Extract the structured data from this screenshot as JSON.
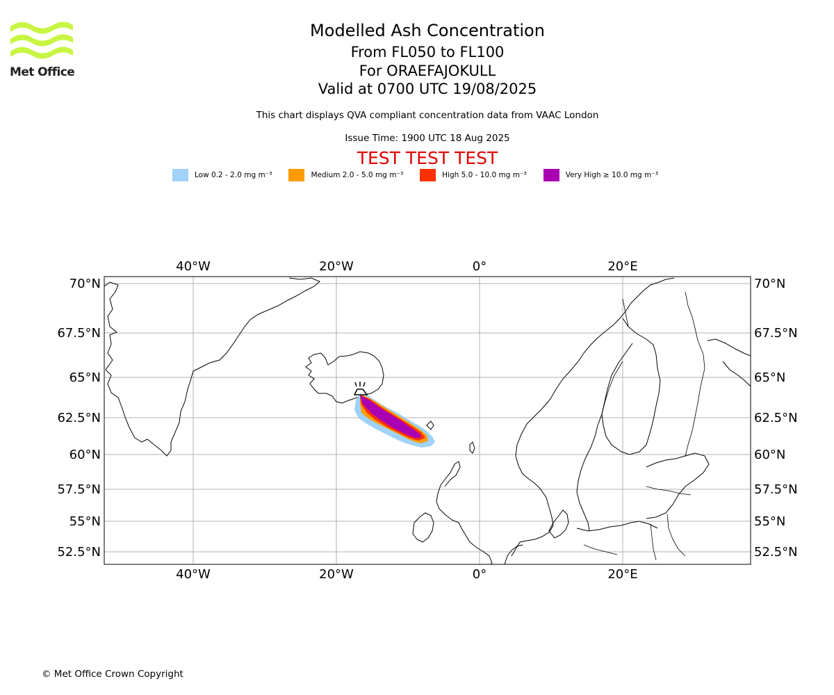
{
  "header": {
    "title": "Modelled Ash Concentration",
    "levels": "From FL050 to FL100",
    "volcano": "For ORAEFAJOKULL",
    "valid": "Valid at 0700 UTC 19/08/2025",
    "note": "This chart displays QVA compliant concentration data from VAAC London",
    "issue_time": "Issue Time: 1900 UTC 18 Aug 2025",
    "test_banner": "TEST TEST TEST"
  },
  "logo": {
    "text": "Met Office",
    "color": "#c8f542"
  },
  "legend": [
    {
      "label": "Low 0.2 - 2.0 mg m⁻³",
      "color": "#a0d2fa"
    },
    {
      "label": "Medium 2.0 - 5.0 mg m⁻³",
      "color": "#ff9a00"
    },
    {
      "label": "High 5.0 - 10.0 mg m⁻³",
      "color": "#ff3000"
    },
    {
      "label": "Very High ≥ 10.0 mg m⁻³",
      "color": "#aa00b4"
    }
  ],
  "map": {
    "lon_labels": [
      "40°W",
      "20°W",
      "0°",
      "20°E"
    ],
    "lat_labels": [
      "70°N",
      "67.5°N",
      "65°N",
      "62.5°N",
      "60°N",
      "57.5°N",
      "55°N",
      "52.5°N"
    ],
    "volcano_marker": "volcano-icon"
  },
  "footer": {
    "copyright": "© Met Office Crown Copyright"
  }
}
